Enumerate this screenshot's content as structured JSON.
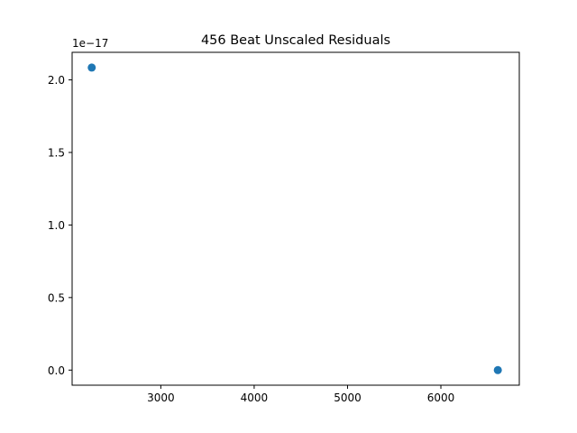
{
  "chart_data": {
    "type": "scatter",
    "title": "456 Beat Unscaled Residuals",
    "xlabel": "",
    "ylabel": "",
    "x_ticks": [
      3000,
      4000,
      5000,
      6000
    ],
    "x_tick_labels": [
      "3000",
      "4000",
      "5000",
      "6000"
    ],
    "y_ticks": [
      0.0,
      0.5,
      1.0,
      1.5,
      2.0
    ],
    "y_tick_labels": [
      "0.0",
      "0.5",
      "1.0",
      "1.5",
      "2.0"
    ],
    "y_offset_label": "1e−17",
    "xlim": [
      2050,
      6840
    ],
    "ylim": [
      -0.104,
      2.19
    ],
    "points": [
      {
        "x": 2260,
        "y": 2.085
      },
      {
        "x": 6610,
        "y": 0.0
      }
    ],
    "marker_color": "#1f77b4",
    "grid": false,
    "legend": "none"
  }
}
